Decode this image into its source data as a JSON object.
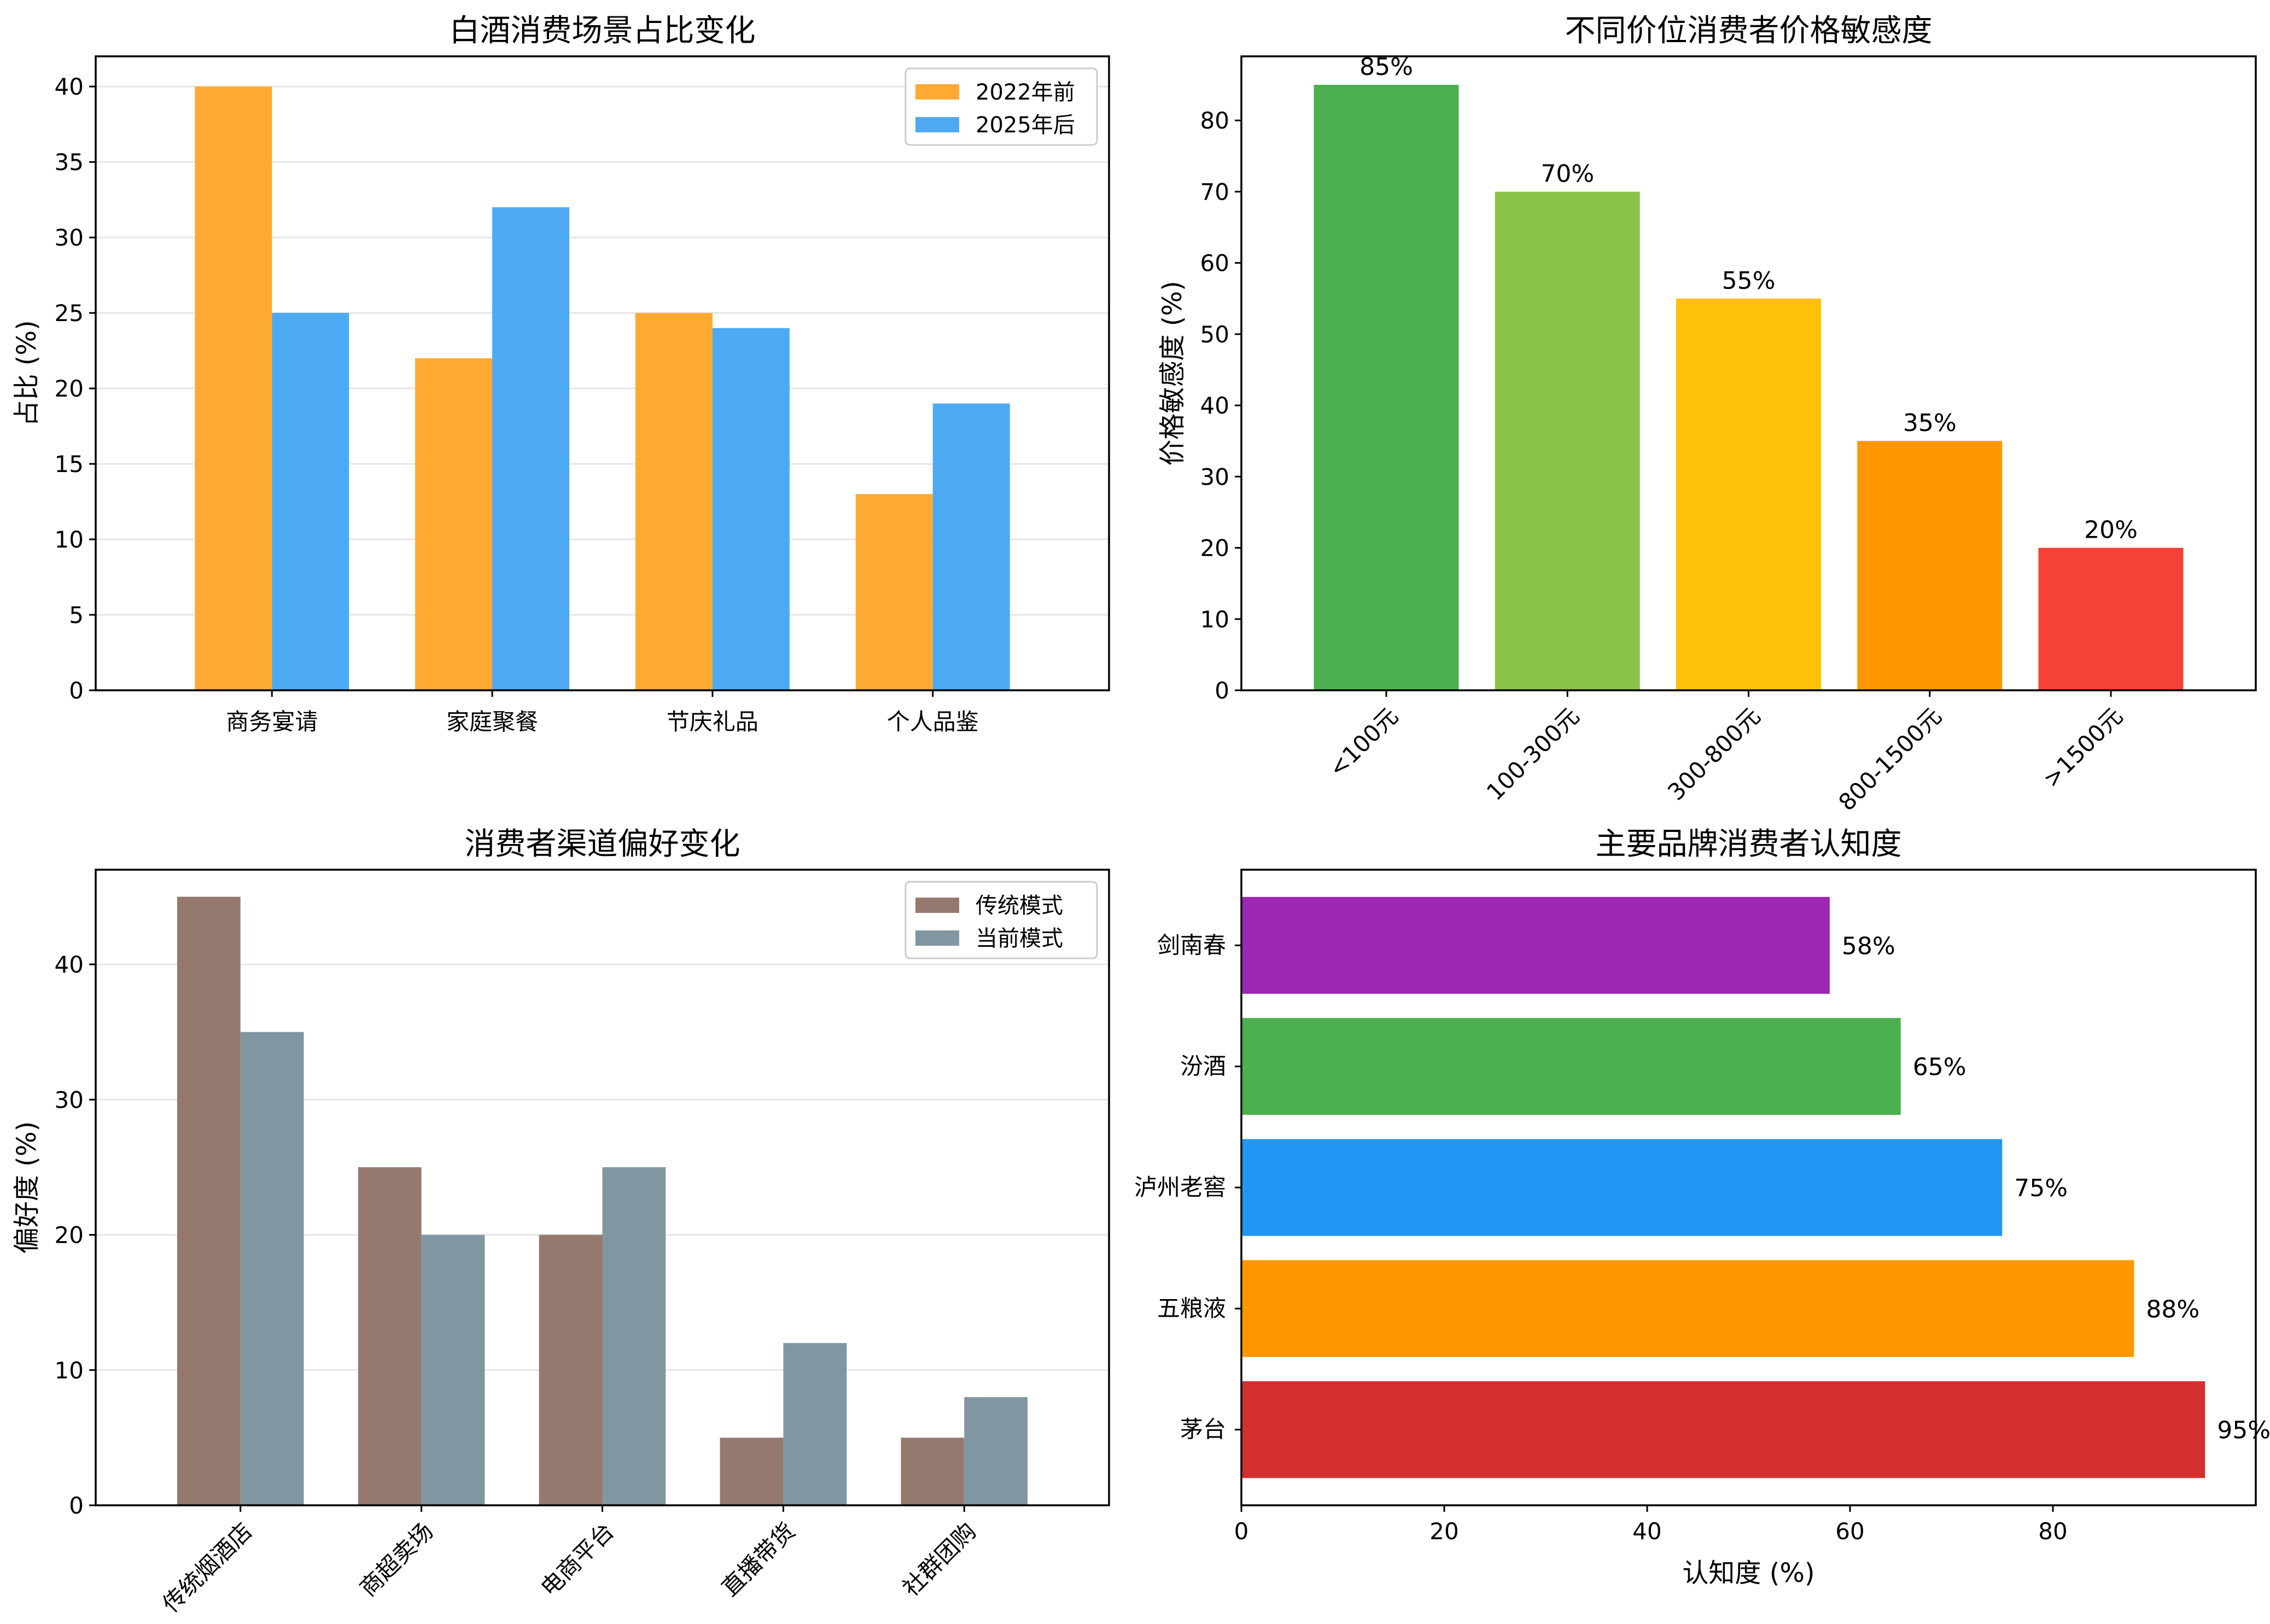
{
  "chart_data": [
    {
      "type": "bar",
      "title": "白酒消费场景占比变化",
      "xlabel": "",
      "ylabel": "占比 (%)",
      "categories": [
        "商务宴请",
        "家庭聚餐",
        "节庆礼品",
        "个人品鉴"
      ],
      "series": [
        {
          "name": "2022年前",
          "values": [
            40,
            22,
            25,
            13
          ],
          "color": "#FFAA33"
        },
        {
          "name": "2025年后",
          "values": [
            25,
            32,
            24,
            19
          ],
          "color": "#4DAAF2"
        }
      ],
      "ylim": [
        0,
        42
      ],
      "yticks": [
        0,
        5,
        10,
        15,
        20,
        25,
        30,
        35,
        40
      ],
      "grid": true,
      "legend": "top-right"
    },
    {
      "type": "bar",
      "title": "不同价位消费者价格敏感度",
      "xlabel": "",
      "ylabel": "价格敏感度 (%)",
      "categories": [
        "<100元",
        "100-300元",
        "300-800元",
        "800-1500元",
        ">1500元"
      ],
      "values": [
        85,
        70,
        55,
        35,
        20
      ],
      "data_labels": [
        "85%",
        "70%",
        "55%",
        "35%",
        "20%"
      ],
      "colors": [
        "#4CAF50",
        "#8BC34A",
        "#FFC107",
        "#FF9800",
        "#F44336"
      ],
      "ylim": [
        0,
        89
      ],
      "yticks": [
        0,
        10,
        20,
        30,
        40,
        50,
        60,
        70,
        80
      ],
      "grid": false
    },
    {
      "type": "bar",
      "title": "消费者渠道偏好变化",
      "xlabel": "",
      "ylabel": "偏好度 (%)",
      "categories": [
        "传统烟酒店",
        "商超卖场",
        "电商平台",
        "直播带货",
        "社群团购"
      ],
      "series": [
        {
          "name": "传统模式",
          "values": [
            45,
            25,
            20,
            5,
            5
          ],
          "color": "#95796E"
        },
        {
          "name": "当前模式",
          "values": [
            35,
            20,
            25,
            12,
            8
          ],
          "color": "#8097A1"
        }
      ],
      "ylim": [
        0,
        47
      ],
      "yticks": [
        0,
        10,
        20,
        30,
        40
      ],
      "grid": true,
      "legend": "top-right"
    },
    {
      "type": "bar",
      "orientation": "horizontal",
      "title": "主要品牌消费者认知度",
      "xlabel": "认知度 (%)",
      "ylabel": "",
      "categories": [
        "茅台",
        "五粮液",
        "泸州老窖",
        "汾酒",
        "剑南春"
      ],
      "values": [
        95,
        88,
        75,
        65,
        58
      ],
      "data_labels": [
        "95%",
        "88%",
        "75%",
        "65%",
        "58%"
      ],
      "colors": [
        "#D32F2F",
        "#FF9800",
        "#2196F3",
        "#4CAF50",
        "#9C27B0"
      ],
      "xlim": [
        0,
        100
      ],
      "xticks": [
        0,
        20,
        40,
        60,
        80
      ],
      "grid": false
    }
  ]
}
